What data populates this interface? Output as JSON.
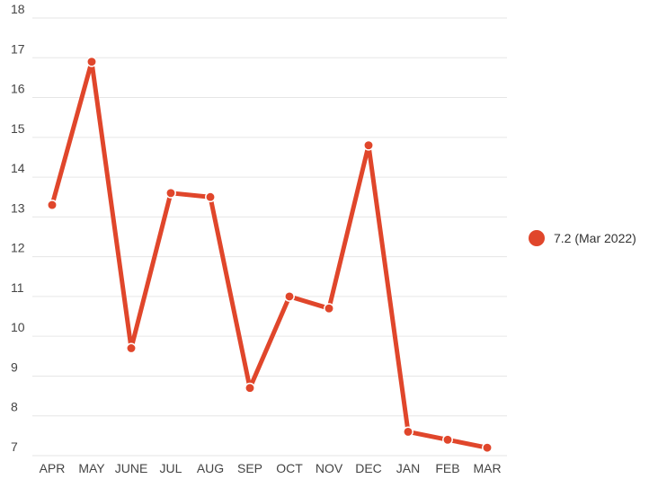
{
  "chart_data": {
    "type": "line",
    "categories": [
      "APR",
      "MAY",
      "JUNE",
      "JUL",
      "AUG",
      "SEP",
      "OCT",
      "NOV",
      "DEC",
      "JAN",
      "FEB",
      "MAR"
    ],
    "series": [
      {
        "name": "",
        "values": [
          13.3,
          16.9,
          9.7,
          13.6,
          13.5,
          8.7,
          11.0,
          10.7,
          14.8,
          7.6,
          7.4,
          7.2
        ],
        "color": "#e0462b"
      }
    ],
    "y_ticks": [
      "7",
      "8",
      "9",
      "10",
      "11",
      "12",
      "13",
      "14",
      "15",
      "16",
      "17",
      "18"
    ],
    "ylim": [
      7,
      18
    ],
    "grid": true,
    "legend": {
      "label": "7.2 (Mar 2022)",
      "placement": "right"
    }
  },
  "colors": {
    "series": "#e0462b",
    "grid": "#e6e6e6",
    "text": "#444444"
  }
}
